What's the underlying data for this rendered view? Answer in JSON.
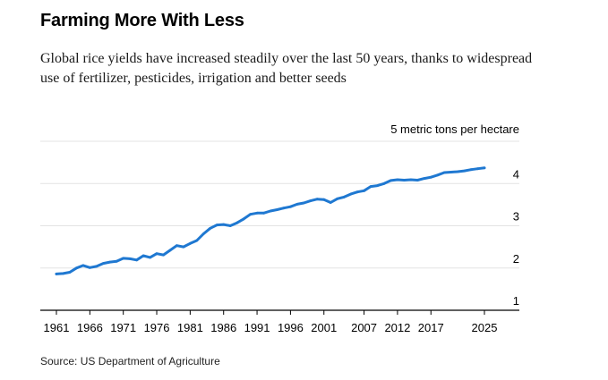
{
  "chart_data": {
    "type": "line",
    "title": "Farming More With Less",
    "subtitle": "Global rice yields have increased steadily over the last 50 years, thanks to widespread use of fertilizer, pesticides, irrigation and better seeds",
    "ylabel": "5 metric tons per hectare",
    "source": "Source: US Department of Agriculture",
    "x_ticks": [
      "1961",
      "1966",
      "1971",
      "1976",
      "1981",
      "1986",
      "1991",
      "1996",
      "2001",
      "2007",
      "2012",
      "2017",
      "2025"
    ],
    "y_ticks": [
      "1",
      "2",
      "3",
      "4"
    ],
    "ylim": [
      1,
      5
    ],
    "xlim": [
      1961,
      2025
    ],
    "grid": true,
    "colors": {
      "line": "#1f78d1",
      "grid": "#e3e3e3",
      "axis": "#000000"
    },
    "series": [
      {
        "x": [
          1961,
          1962,
          1963,
          1964,
          1965,
          1966,
          1967,
          1968,
          1969,
          1970,
          1971,
          1972,
          1973,
          1974,
          1975,
          1976,
          1977,
          1978,
          1979,
          1980,
          1981,
          1982,
          1983,
          1984,
          1985,
          1986,
          1987,
          1988,
          1989,
          1990,
          1991,
          1992,
          1993,
          1994,
          1995,
          1996,
          1997,
          1998,
          1999,
          2000,
          2001,
          2002,
          2003,
          2004,
          2005,
          2006,
          2007,
          2008,
          2009,
          2010,
          2011,
          2012,
          2013,
          2014,
          2015,
          2016,
          2017,
          2018,
          2019,
          2020,
          2021,
          2022,
          2023,
          2024,
          2025
        ],
        "values": [
          1.86,
          1.87,
          1.9,
          2.0,
          2.06,
          2.01,
          2.04,
          2.11,
          2.14,
          2.16,
          2.23,
          2.22,
          2.19,
          2.29,
          2.25,
          2.34,
          2.31,
          2.42,
          2.53,
          2.5,
          2.58,
          2.65,
          2.81,
          2.94,
          3.02,
          3.03,
          3.0,
          3.07,
          3.16,
          3.27,
          3.3,
          3.3,
          3.35,
          3.38,
          3.42,
          3.45,
          3.51,
          3.54,
          3.59,
          3.63,
          3.62,
          3.55,
          3.64,
          3.68,
          3.75,
          3.8,
          3.83,
          3.93,
          3.95,
          4.0,
          4.07,
          4.09,
          4.08,
          4.09,
          4.08,
          4.12,
          4.15,
          4.2,
          4.26,
          4.27,
          4.28,
          4.3,
          4.33,
          4.35,
          4.37
        ]
      }
    ]
  }
}
